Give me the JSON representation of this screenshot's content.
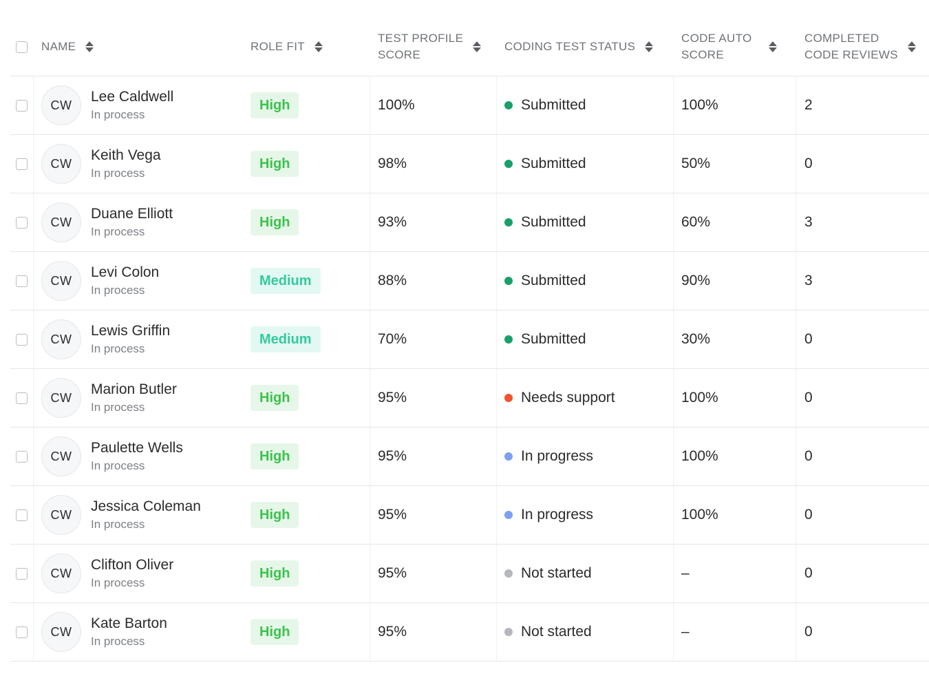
{
  "header": {
    "name": "NAME",
    "role_fit": "ROLE FIT",
    "test_profile_score_1": "TEST PROFILE",
    "test_profile_score_2": "SCORE",
    "coding_test_status": "CODING TEST STATUS",
    "code_auto_score_1": "CODE AUTO",
    "code_auto_score_2": "SCORE",
    "completed_code_reviews_1": "COMPLETED",
    "completed_code_reviews_2": "CODE REVIEWS"
  },
  "colors": {
    "high_text": "#3cc24d",
    "high_bg": "#e6f7e9",
    "medium_text": "#34c99e",
    "medium_bg": "#e3f8f3",
    "submitted": "#1a9f6b",
    "needs_support": "#f0532b",
    "in_progress": "#7ea0f2",
    "not_started": "#b5b8bc"
  },
  "rows": [
    {
      "initials": "CW",
      "name": "Lee Caldwell",
      "sub": "In process",
      "role": "High",
      "role_level": "high",
      "tps": "100%",
      "status": "Submitted",
      "status_key": "submitted",
      "cas": "100%",
      "ccr": "2"
    },
    {
      "initials": "CW",
      "name": "Keith Vega",
      "sub": "In process",
      "role": "High",
      "role_level": "high",
      "tps": "98%",
      "status": "Submitted",
      "status_key": "submitted",
      "cas": "50%",
      "ccr": "0"
    },
    {
      "initials": "CW",
      "name": "Duane Elliott",
      "sub": "In process",
      "role": "High",
      "role_level": "high",
      "tps": "93%",
      "status": "Submitted",
      "status_key": "submitted",
      "cas": "60%",
      "ccr": "3"
    },
    {
      "initials": "CW",
      "name": "Levi Colon",
      "sub": "In process",
      "role": "Medium",
      "role_level": "medium",
      "tps": "88%",
      "status": "Submitted",
      "status_key": "submitted",
      "cas": "90%",
      "ccr": "3"
    },
    {
      "initials": "CW",
      "name": "Lewis Griffin",
      "sub": "In process",
      "role": "Medium",
      "role_level": "medium",
      "tps": "70%",
      "status": "Submitted",
      "status_key": "submitted",
      "cas": "30%",
      "ccr": "0"
    },
    {
      "initials": "CW",
      "name": "Marion Butler",
      "sub": "In process",
      "role": "High",
      "role_level": "high",
      "tps": "95%",
      "status": "Needs support",
      "status_key": "needs_support",
      "cas": "100%",
      "ccr": "0"
    },
    {
      "initials": "CW",
      "name": "Paulette Wells",
      "sub": "In process",
      "role": "High",
      "role_level": "high",
      "tps": "95%",
      "status": "In progress",
      "status_key": "in_progress",
      "cas": "100%",
      "ccr": "0"
    },
    {
      "initials": "CW",
      "name": "Jessica Coleman",
      "sub": "In process",
      "role": "High",
      "role_level": "high",
      "tps": "95%",
      "status": "In progress",
      "status_key": "in_progress",
      "cas": "100%",
      "ccr": "0"
    },
    {
      "initials": "CW",
      "name": "Clifton Oliver",
      "sub": "In process",
      "role": "High",
      "role_level": "high",
      "tps": "95%",
      "status": "Not started",
      "status_key": "not_started",
      "cas": "–",
      "ccr": "0"
    },
    {
      "initials": "CW",
      "name": "Kate Barton",
      "sub": "In process",
      "role": "High",
      "role_level": "high",
      "tps": "95%",
      "status": "Not started",
      "status_key": "not_started",
      "cas": "–",
      "ccr": "0"
    }
  ]
}
